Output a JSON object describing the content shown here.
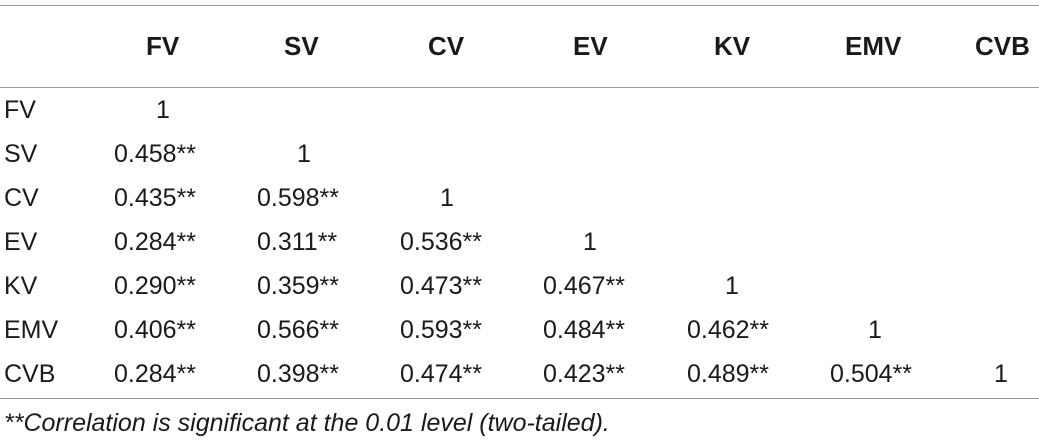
{
  "table": {
    "columns": [
      "FV",
      "SV",
      "CV",
      "EV",
      "KV",
      "EMV",
      "CVB"
    ],
    "rows": [
      {
        "label": "FV",
        "cells": [
          "1"
        ]
      },
      {
        "label": "SV",
        "cells": [
          "0.458**",
          "1"
        ]
      },
      {
        "label": "CV",
        "cells": [
          "0.435**",
          "0.598**",
          "1"
        ]
      },
      {
        "label": "EV",
        "cells": [
          "0.284**",
          "0.311**",
          "0.536**",
          "1"
        ]
      },
      {
        "label": "KV",
        "cells": [
          "0.290**",
          "0.359**",
          "0.473**",
          "0.467**",
          "1"
        ]
      },
      {
        "label": "EMV",
        "cells": [
          "0.406**",
          "0.566**",
          "0.593**",
          "0.484**",
          "0.462**",
          "1"
        ]
      },
      {
        "label": "CVB",
        "cells": [
          "0.284**",
          "0.398**",
          "0.474**",
          "0.423**",
          "0.489**",
          "0.504**",
          "1"
        ]
      }
    ],
    "footnote": "**Correlation is significant at the 0.01 level (two-tailed)."
  }
}
